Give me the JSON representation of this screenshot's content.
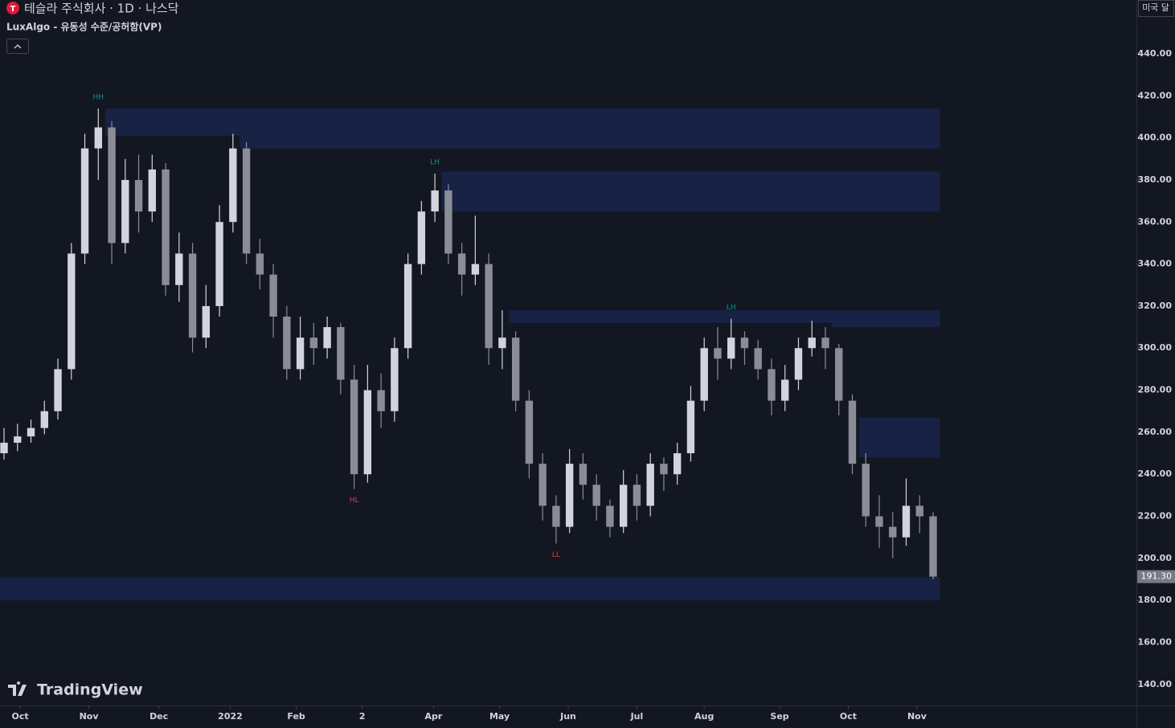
{
  "chart_data": {
    "type": "candlestick",
    "title": "테슬라 주식회사 · 1D · 나스닥",
    "subtitle": "LuxAlgo - 유동성 수준/공허함(VP)",
    "currency": "미국 달",
    "brand": "TradingView",
    "up_color": "#d1d4dc",
    "down_color": "#8a8d96",
    "zone_color": "#172347",
    "open": [
      250,
      255,
      258,
      262,
      270,
      290,
      345,
      395,
      405,
      350,
      380,
      365,
      385,
      330,
      345,
      305,
      320,
      360,
      395,
      345,
      335,
      315,
      290,
      305,
      300,
      310,
      285,
      240,
      280,
      270,
      300,
      340,
      365,
      375,
      345,
      335,
      340,
      300,
      305,
      275,
      245,
      225,
      215,
      245,
      235,
      225,
      215,
      235,
      225,
      245,
      240,
      250,
      275,
      300,
      295,
      305,
      300,
      290,
      275,
      285,
      300,
      305,
      300,
      275,
      245,
      220,
      215,
      210,
      225,
      220
    ],
    "high": [
      262,
      264,
      266,
      275,
      295,
      350,
      402,
      414,
      408,
      390,
      392,
      392,
      388,
      355,
      350,
      330,
      368,
      402,
      398,
      352,
      340,
      320,
      315,
      312,
      315,
      312,
      292,
      292,
      288,
      305,
      345,
      370,
      383,
      378,
      350,
      363,
      345,
      318,
      308,
      280,
      250,
      230,
      252,
      250,
      240,
      228,
      242,
      240,
      250,
      248,
      255,
      282,
      305,
      310,
      314,
      308,
      304,
      295,
      292,
      305,
      313,
      310,
      302,
      278,
      250,
      230,
      222,
      238,
      230,
      222
    ],
    "low": [
      247,
      251,
      255,
      259,
      266,
      285,
      340,
      380,
      340,
      345,
      355,
      360,
      325,
      322,
      298,
      300,
      315,
      355,
      340,
      328,
      305,
      285,
      285,
      292,
      295,
      278,
      233,
      236,
      262,
      265,
      295,
      335,
      360,
      340,
      325,
      330,
      292,
      290,
      270,
      238,
      218,
      207,
      212,
      228,
      218,
      210,
      212,
      218,
      220,
      232,
      235,
      246,
      270,
      285,
      290,
      292,
      285,
      268,
      270,
      280,
      296,
      290,
      268,
      240,
      215,
      205,
      200,
      206,
      212,
      190
    ],
    "close": [
      255,
      258,
      262,
      270,
      290,
      345,
      395,
      405,
      350,
      380,
      365,
      385,
      330,
      345,
      305,
      320,
      360,
      395,
      345,
      335,
      315,
      290,
      305,
      300,
      310,
      285,
      240,
      280,
      270,
      300,
      340,
      365,
      375,
      345,
      335,
      340,
      300,
      305,
      275,
      245,
      225,
      215,
      245,
      235,
      225,
      215,
      235,
      225,
      245,
      240,
      250,
      275,
      300,
      295,
      305,
      300,
      290,
      275,
      285,
      300,
      305,
      300,
      275,
      245,
      220,
      215,
      210,
      225,
      220,
      191.3
    ],
    "last_price_label": "191.30",
    "zones": [
      {
        "start": 7,
        "low": 401,
        "high": 414
      },
      {
        "start": 17,
        "low": 395,
        "high": 401
      },
      {
        "start": 32,
        "low": 365,
        "high": 384
      },
      {
        "start": 37,
        "low": 312,
        "high": 318
      },
      {
        "start": 61,
        "low": 310,
        "high": 315
      },
      {
        "start": 63,
        "low": 248,
        "high": 267
      },
      {
        "start": -0.3,
        "low": 180,
        "high": 191
      }
    ],
    "annotations": [
      {
        "text": "HH",
        "at": 7,
        "side": "high",
        "color": "#089981"
      },
      {
        "text": "HL",
        "at": 26,
        "side": "low",
        "color": "#f23645"
      },
      {
        "text": "LH",
        "at": 32,
        "side": "high",
        "color": "#089981"
      },
      {
        "text": "LL",
        "at": 41,
        "side": "low",
        "color": "#f23645"
      },
      {
        "text": "LH",
        "at": 54,
        "side": "high",
        "color": "#089981"
      }
    ],
    "xlim": [
      -0.3,
      84.1
    ],
    "xticks": [
      {
        "value": 1.2,
        "label": "Oct"
      },
      {
        "value": 6.3,
        "label": "Nov"
      },
      {
        "value": 11.5,
        "label": "Dec"
      },
      {
        "value": 16.8,
        "label": "2022"
      },
      {
        "value": 21.7,
        "label": "Feb"
      },
      {
        "value": 26.6,
        "label": "2"
      },
      {
        "value": 31.9,
        "label": "Apr"
      },
      {
        "value": 36.8,
        "label": "May"
      },
      {
        "value": 41.9,
        "label": "Jun"
      },
      {
        "value": 47,
        "label": "Jul"
      },
      {
        "value": 52,
        "label": "Aug"
      },
      {
        "value": 57.6,
        "label": "Sep"
      },
      {
        "value": 62.7,
        "label": "Oct"
      },
      {
        "value": 67.8,
        "label": "Nov"
      }
    ],
    "ylim": [
      130,
      465.6
    ],
    "yticks": [
      {
        "value": 140,
        "label": "140.00"
      },
      {
        "value": 160,
        "label": "160.00"
      },
      {
        "value": 180,
        "label": "180.00"
      },
      {
        "value": 200,
        "label": "200.00"
      },
      {
        "value": 220,
        "label": "220.00"
      },
      {
        "value": 240,
        "label": "240.00"
      },
      {
        "value": 260,
        "label": "260.00"
      },
      {
        "value": 280,
        "label": "280.00"
      },
      {
        "value": 300,
        "label": "300.00"
      },
      {
        "value": 320,
        "label": "320.00"
      },
      {
        "value": 340,
        "label": "340.00"
      },
      {
        "value": 360,
        "label": "360.00"
      },
      {
        "value": 380,
        "label": "380.00"
      },
      {
        "value": 400,
        "label": "400.00"
      },
      {
        "value": 420,
        "label": "420.00"
      },
      {
        "value": 440,
        "label": "440.00"
      }
    ]
  }
}
